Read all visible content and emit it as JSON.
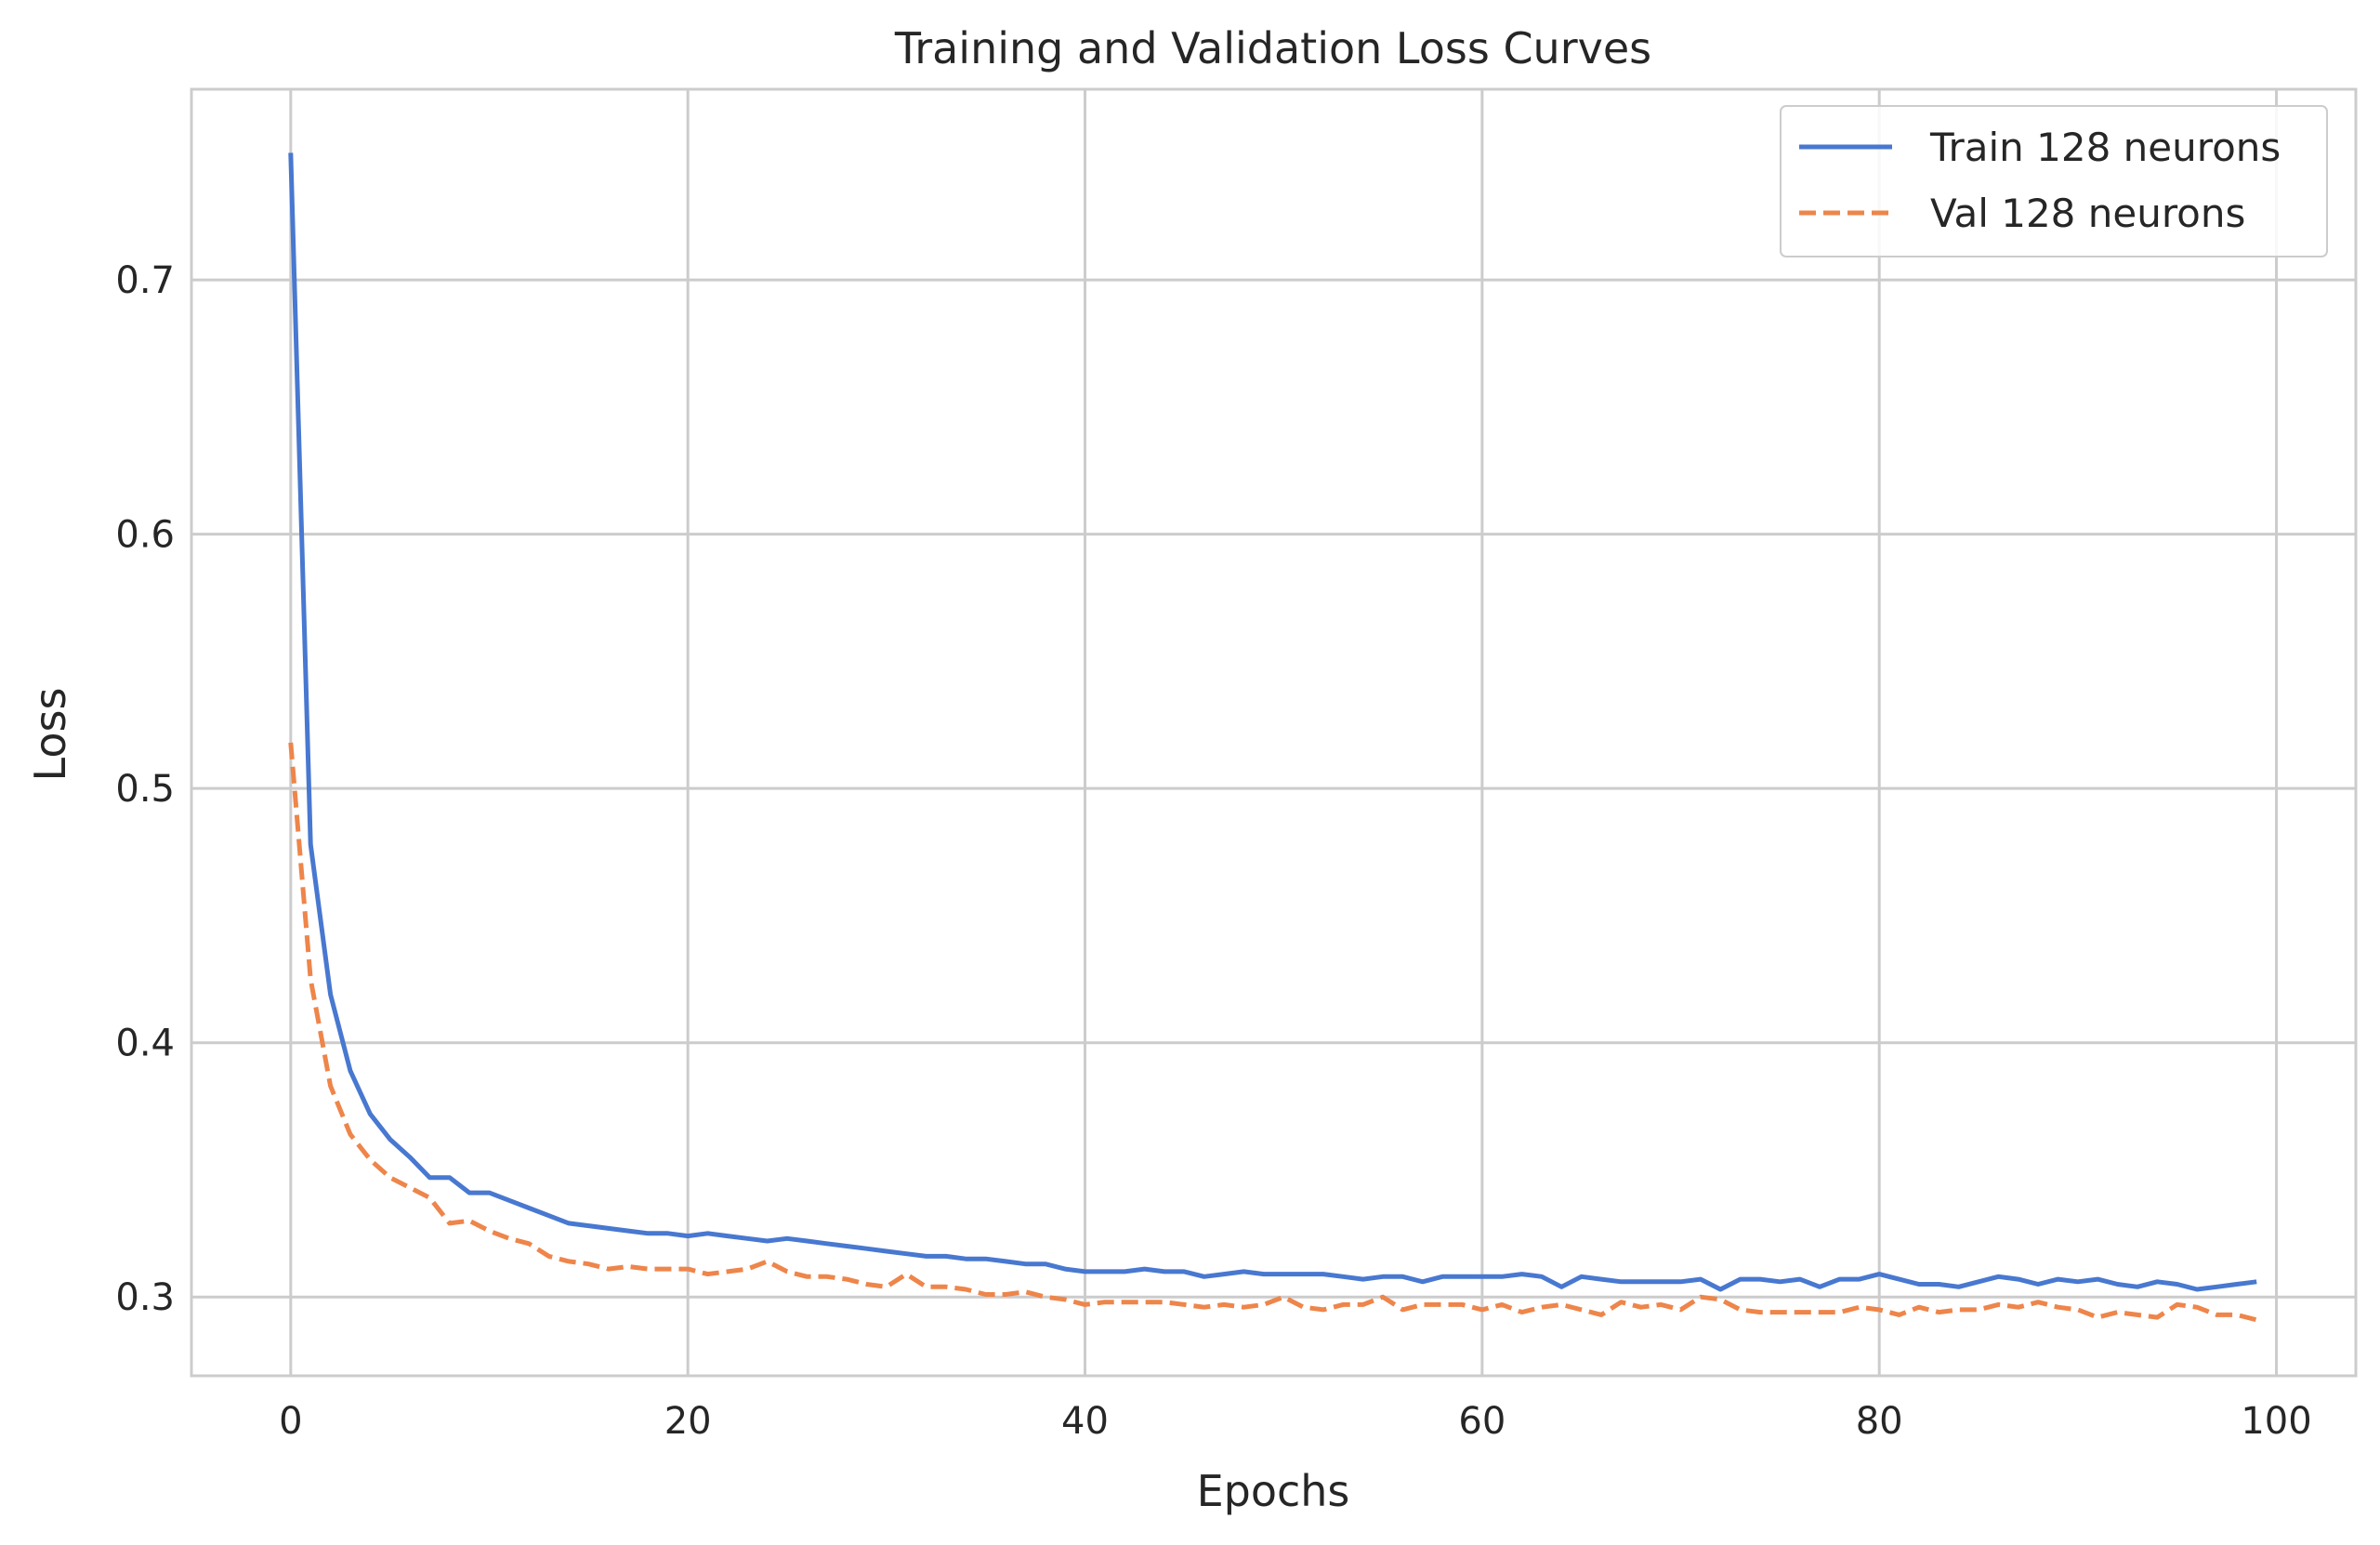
{
  "chart_data": {
    "type": "line",
    "title": "Training and Validation Loss Curves",
    "xlabel": "Epochs",
    "ylabel": "Loss",
    "xlim": [
      -5,
      104
    ],
    "ylim": [
      0.269,
      0.775
    ],
    "xticks": [
      0,
      20,
      40,
      60,
      80,
      100
    ],
    "yticks": [
      0.3,
      0.4,
      0.5,
      0.6,
      0.7
    ],
    "xtick_labels": [
      "0",
      "20",
      "40",
      "60",
      "80",
      "100"
    ],
    "ytick_labels": [
      "0.3",
      "0.4",
      "0.5",
      "0.6",
      "0.7"
    ],
    "grid": true,
    "legend_position": "top-right",
    "series": [
      {
        "name": "Train 128 neurons",
        "style": "solid",
        "color": "#4878d0",
        "x": [
          0,
          1,
          2,
          3,
          4,
          5,
          6,
          7,
          8,
          9,
          10,
          11,
          12,
          13,
          14,
          15,
          16,
          17,
          18,
          19,
          20,
          21,
          22,
          23,
          24,
          25,
          26,
          27,
          28,
          29,
          30,
          31,
          32,
          33,
          34,
          35,
          36,
          37,
          38,
          39,
          40,
          41,
          42,
          43,
          44,
          45,
          46,
          47,
          48,
          49,
          50,
          51,
          52,
          53,
          54,
          55,
          56,
          57,
          58,
          59,
          60,
          61,
          62,
          63,
          64,
          65,
          66,
          67,
          68,
          69,
          70,
          71,
          72,
          73,
          74,
          75,
          76,
          77,
          78,
          79,
          80,
          81,
          82,
          83,
          84,
          85,
          86,
          87,
          88,
          89,
          90,
          91,
          92,
          93,
          94,
          95,
          96,
          97,
          98,
          99
        ],
        "values": [
          0.75,
          0.478,
          0.419,
          0.389,
          0.372,
          0.362,
          0.355,
          0.347,
          0.347,
          0.341,
          0.341,
          0.338,
          0.335,
          0.332,
          0.329,
          0.328,
          0.327,
          0.326,
          0.325,
          0.325,
          0.324,
          0.325,
          0.324,
          0.323,
          0.322,
          0.323,
          0.322,
          0.321,
          0.32,
          0.319,
          0.318,
          0.317,
          0.316,
          0.316,
          0.315,
          0.315,
          0.314,
          0.313,
          0.313,
          0.311,
          0.31,
          0.31,
          0.31,
          0.311,
          0.31,
          0.31,
          0.308,
          0.309,
          0.31,
          0.309,
          0.309,
          0.309,
          0.309,
          0.308,
          0.307,
          0.308,
          0.308,
          0.306,
          0.308,
          0.308,
          0.308,
          0.308,
          0.309,
          0.308,
          0.304,
          0.308,
          0.307,
          0.306,
          0.306,
          0.306,
          0.306,
          0.307,
          0.303,
          0.307,
          0.307,
          0.306,
          0.307,
          0.304,
          0.307,
          0.307,
          0.309,
          0.307,
          0.305,
          0.305,
          0.304,
          0.306,
          0.308,
          0.307,
          0.305,
          0.307,
          0.306,
          0.307,
          0.305,
          0.304,
          0.306,
          0.305,
          0.303,
          0.304,
          0.305,
          0.306
        ]
      },
      {
        "name": "Val 128 neurons",
        "style": "dashed",
        "color": "#ee854a",
        "x": [
          0,
          1,
          2,
          3,
          4,
          5,
          6,
          7,
          8,
          9,
          10,
          11,
          12,
          13,
          14,
          15,
          16,
          17,
          18,
          19,
          20,
          21,
          22,
          23,
          24,
          25,
          26,
          27,
          28,
          29,
          30,
          31,
          32,
          33,
          34,
          35,
          36,
          37,
          38,
          39,
          40,
          41,
          42,
          43,
          44,
          45,
          46,
          47,
          48,
          49,
          50,
          51,
          52,
          53,
          54,
          55,
          56,
          57,
          58,
          59,
          60,
          61,
          62,
          63,
          64,
          65,
          66,
          67,
          68,
          69,
          70,
          71,
          72,
          73,
          74,
          75,
          76,
          77,
          78,
          79,
          80,
          81,
          82,
          83,
          84,
          85,
          86,
          87,
          88,
          89,
          90,
          91,
          92,
          93,
          94,
          95,
          96,
          97,
          98,
          99
        ],
        "values": [
          0.518,
          0.425,
          0.383,
          0.364,
          0.354,
          0.347,
          0.343,
          0.339,
          0.329,
          0.33,
          0.326,
          0.323,
          0.321,
          0.316,
          0.314,
          0.313,
          0.311,
          0.312,
          0.311,
          0.311,
          0.311,
          0.309,
          0.31,
          0.311,
          0.314,
          0.31,
          0.308,
          0.308,
          0.307,
          0.305,
          0.304,
          0.309,
          0.304,
          0.304,
          0.303,
          0.301,
          0.301,
          0.302,
          0.3,
          0.299,
          0.297,
          0.298,
          0.298,
          0.298,
          0.298,
          0.297,
          0.296,
          0.297,
          0.296,
          0.297,
          0.3,
          0.296,
          0.295,
          0.297,
          0.297,
          0.3,
          0.295,
          0.297,
          0.297,
          0.297,
          0.295,
          0.297,
          0.294,
          0.296,
          0.297,
          0.295,
          0.293,
          0.298,
          0.296,
          0.297,
          0.295,
          0.3,
          0.299,
          0.295,
          0.294,
          0.294,
          0.294,
          0.294,
          0.294,
          0.296,
          0.295,
          0.293,
          0.296,
          0.294,
          0.295,
          0.295,
          0.297,
          0.296,
          0.298,
          0.296,
          0.295,
          0.292,
          0.294,
          0.293,
          0.292,
          0.297,
          0.296,
          0.293,
          0.293,
          0.291
        ]
      }
    ]
  },
  "colors": {
    "grid": "#cccccc",
    "axes_edge": "#cccccc",
    "text": "#262626",
    "background": "#ffffff"
  }
}
